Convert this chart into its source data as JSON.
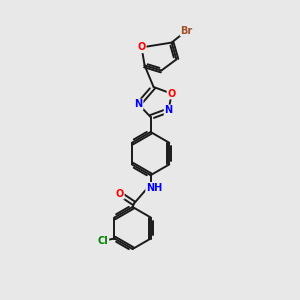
{
  "background_color": "#e8e8e8",
  "bond_color": "#1a1a1a",
  "atom_colors": {
    "O": "#ff0000",
    "N": "#0000ff",
    "Cl": "#008000",
    "Br": "#a0522d",
    "H": "#2e8b8b",
    "C": "#1a1a1a"
  },
  "figsize": [
    3.0,
    3.0
  ],
  "dpi": 100,
  "lw": 1.4,
  "fs": 7.0
}
